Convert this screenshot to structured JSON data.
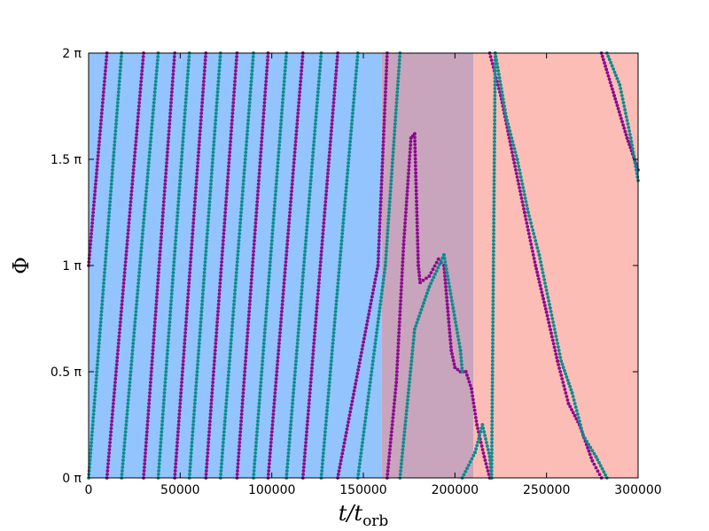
{
  "chart_data": {
    "type": "scatter",
    "title": "",
    "xlabel_main": "t/t",
    "xlabel_sub": "orb",
    "ylabel": "Φ",
    "xlim": [
      0,
      300000
    ],
    "ylim": [
      0,
      2
    ],
    "grid": false,
    "x_ticks": [
      {
        "value": 0,
        "label": "0"
      },
      {
        "value": 50000,
        "label": "50000"
      },
      {
        "value": 100000,
        "label": "100000"
      },
      {
        "value": 150000,
        "label": "150000"
      },
      {
        "value": 200000,
        "label": "200000"
      },
      {
        "value": 250000,
        "label": "250000"
      },
      {
        "value": 300000,
        "label": "300000"
      }
    ],
    "y_ticks": [
      {
        "value": 0,
        "label": "0 π"
      },
      {
        "value": 0.5,
        "label": "0.5 π"
      },
      {
        "value": 1,
        "label": "1 π"
      },
      {
        "value": 1.5,
        "label": "1.5 π"
      },
      {
        "value": 2,
        "label": "2 π"
      }
    ],
    "regions": [
      {
        "x0": 0,
        "x1": 160000,
        "color": "#93c4fd"
      },
      {
        "x0": 160000,
        "x1": 210000,
        "color": "#c8a4bd"
      },
      {
        "x0": 210000,
        "x1": 300000,
        "color": "#fcbdb7"
      }
    ],
    "series": [
      {
        "color": "#8b0a8b",
        "points": [
          [
            0,
            1.0
          ],
          [
            10000,
            2.0
          ],
          [
            10000,
            0.0
          ],
          [
            30000,
            2.0
          ],
          [
            30000,
            0.0
          ],
          [
            47000,
            2.0
          ],
          [
            47000,
            0.0
          ],
          [
            64000,
            2.0
          ],
          [
            64000,
            0.0
          ],
          [
            81000,
            2.0
          ],
          [
            81000,
            0.0
          ],
          [
            98000,
            2.0
          ],
          [
            98000,
            0.0
          ],
          [
            117000,
            2.0
          ],
          [
            117000,
            0.0
          ],
          [
            136000,
            2.0
          ],
          [
            136000,
            0.0
          ],
          [
            158000,
            1.0
          ],
          [
            163000,
            2.0
          ],
          [
            163000,
            0.0
          ],
          [
            168000,
            0.45
          ],
          [
            172000,
            1.1
          ],
          [
            176000,
            1.6
          ],
          [
            178000,
            1.62
          ],
          [
            180000,
            1.0
          ],
          [
            181000,
            0.92
          ],
          [
            186000,
            0.95
          ],
          [
            191000,
            1.03
          ],
          [
            194000,
            1.0
          ],
          [
            196000,
            0.8
          ],
          [
            198000,
            0.6
          ],
          [
            200000,
            0.52
          ],
          [
            203000,
            0.5
          ],
          [
            206000,
            0.5
          ],
          [
            209000,
            0.42
          ],
          [
            212000,
            0.25
          ],
          [
            216000,
            0.1
          ],
          [
            219000,
            0.0
          ],
          [
            219000,
            2.0
          ],
          [
            225000,
            1.8
          ],
          [
            232000,
            1.5
          ],
          [
            238000,
            1.25
          ],
          [
            244000,
            1.0
          ],
          [
            250000,
            0.78
          ],
          [
            256000,
            0.55
          ],
          [
            262000,
            0.35
          ],
          [
            268000,
            0.25
          ],
          [
            275000,
            0.08
          ],
          [
            280000,
            0.0
          ],
          [
            280000,
            2.0
          ],
          [
            287000,
            1.8
          ],
          [
            294000,
            1.6
          ],
          [
            300000,
            1.45
          ]
        ]
      },
      {
        "color": "#0a8b8b",
        "points": [
          [
            0,
            0.0
          ],
          [
            18000,
            2.0
          ],
          [
            18000,
            0.0
          ],
          [
            38000,
            2.0
          ],
          [
            38000,
            0.0
          ],
          [
            55000,
            2.0
          ],
          [
            55000,
            0.0
          ],
          [
            72000,
            2.0
          ],
          [
            72000,
            0.0
          ],
          [
            90000,
            2.0
          ],
          [
            90000,
            0.0
          ],
          [
            108000,
            2.0
          ],
          [
            108000,
            0.0
          ],
          [
            127000,
            2.0
          ],
          [
            127000,
            0.0
          ],
          [
            147000,
            2.0
          ],
          [
            147000,
            0.0
          ],
          [
            162000,
            1.0
          ],
          [
            170000,
            2.0
          ],
          [
            170000,
            0.0
          ],
          [
            178000,
            0.7
          ],
          [
            186000,
            0.9
          ],
          [
            194000,
            1.05
          ],
          [
            199000,
            0.8
          ],
          [
            203000,
            0.6
          ],
          [
            204000,
            0.5
          ],
          [
            204000,
            0.0
          ],
          [
            211000,
            0.12
          ],
          [
            215000,
            0.25
          ],
          [
            219000,
            0.1
          ],
          [
            220000,
            0.0
          ],
          [
            222000,
            2.0
          ],
          [
            228000,
            1.7
          ],
          [
            234000,
            1.5
          ],
          [
            240000,
            1.25
          ],
          [
            246000,
            1.05
          ],
          [
            252000,
            0.8
          ],
          [
            258000,
            0.55
          ],
          [
            264000,
            0.4
          ],
          [
            270000,
            0.2
          ],
          [
            277000,
            0.1
          ],
          [
            283000,
            0.0
          ],
          [
            283000,
            2.0
          ],
          [
            290000,
            1.85
          ],
          [
            296000,
            1.6
          ],
          [
            300000,
            1.4
          ]
        ]
      }
    ]
  }
}
